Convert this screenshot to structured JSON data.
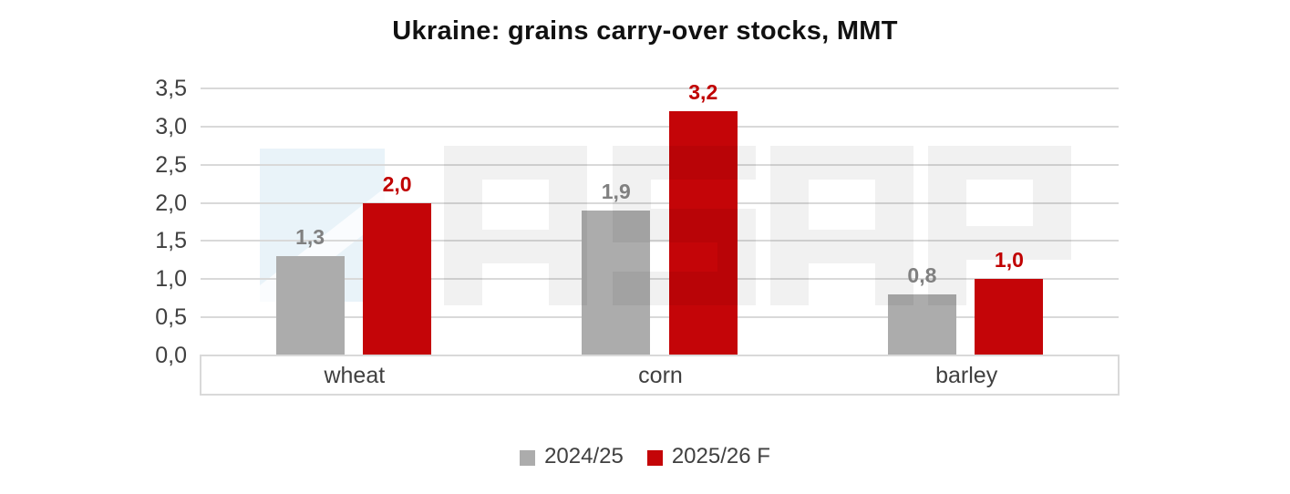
{
  "title": "Ukraine: grains carry-over stocks, MMT",
  "watermark": {
    "text": "ASAP"
  },
  "colors": {
    "background": "#ffffff",
    "title_text": "#111111",
    "axis_text": "#404040",
    "gridline": "#d9d9d9",
    "category_box_border": "#d9d9d9",
    "series1_bar": "#acacac",
    "series1_label": "#808080",
    "series2_bar": "#c40508",
    "series2_label": "#c00000",
    "watermark_blue": "#e9f3f9",
    "watermark_letter": "rgba(0,0,0,0.055)"
  },
  "chart_data": {
    "type": "bar",
    "title": "Ukraine: grains carry-over stocks, MMT",
    "categories": [
      "wheat",
      "corn",
      "barley"
    ],
    "series": [
      {
        "name": "2024/25",
        "values": [
          1.3,
          1.9,
          0.8
        ],
        "labels": [
          "1,3",
          "1,9",
          "0,8"
        ],
        "color": "#acacac",
        "label_color": "#808080"
      },
      {
        "name": "2025/26 F",
        "values": [
          2.0,
          3.2,
          1.0
        ],
        "labels": [
          "2,0",
          "3,2",
          "1,0"
        ],
        "color": "#c40508",
        "label_color": "#c00000"
      }
    ],
    "xlabel": "",
    "ylabel": "",
    "unit": "MMT",
    "ylim": [
      0,
      3.5
    ],
    "ytick_step": 0.5,
    "ytick_labels": [
      "0,0",
      "0,5",
      "1,0",
      "1,5",
      "2,0",
      "2,5",
      "3,0",
      "3,5"
    ],
    "decimal_separator": ",",
    "grid": true,
    "legend_position": "bottom"
  },
  "legend": [
    {
      "label": "2024/25",
      "color": "#acacac"
    },
    {
      "label": "2025/26 F",
      "color": "#c40508"
    }
  ]
}
